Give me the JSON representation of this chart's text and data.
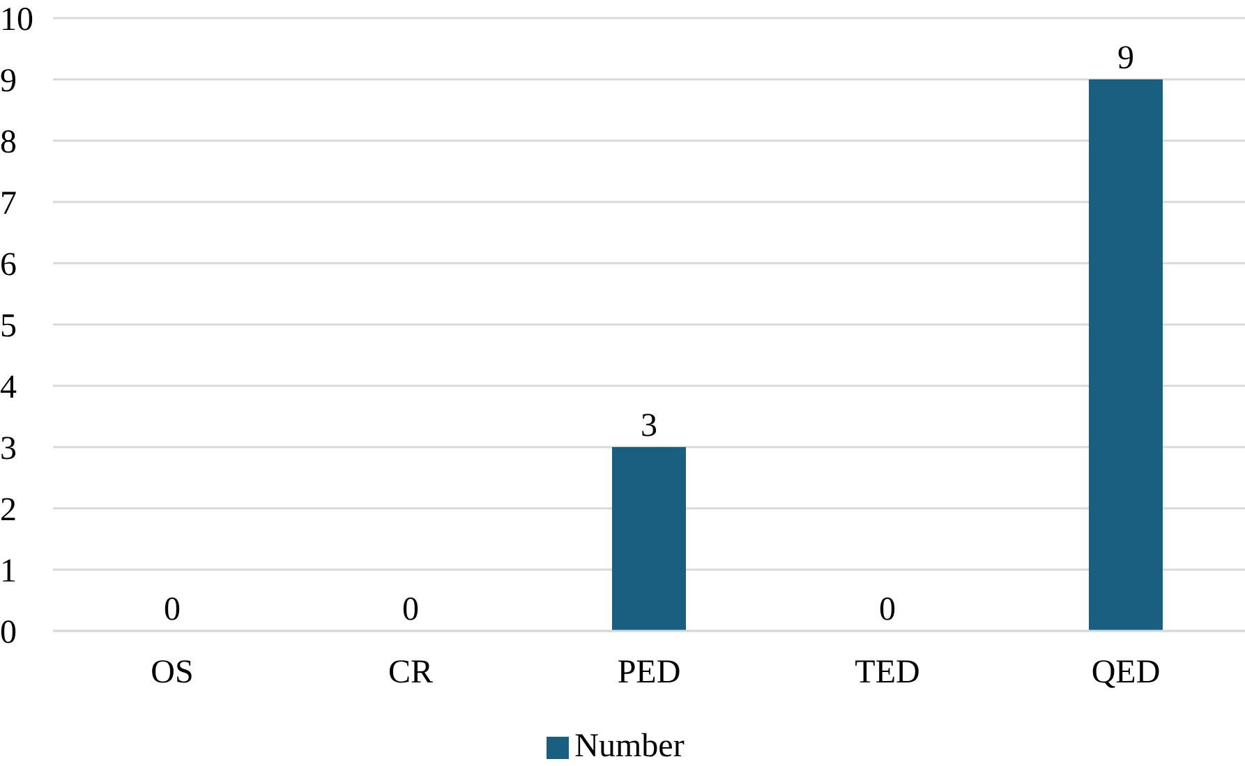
{
  "chart_data": {
    "type": "bar",
    "categories": [
      "OS",
      "CR",
      "PED",
      "TED",
      "QED"
    ],
    "series": [
      {
        "name": "Number",
        "color": "#1a5f80",
        "values": [
          0,
          0,
          3,
          0,
          9
        ]
      }
    ],
    "ylim": [
      0,
      10
    ],
    "yticks": [
      0,
      1,
      2,
      3,
      4,
      5,
      6,
      7,
      8,
      9,
      10
    ],
    "grid": "y",
    "legend": "bottom",
    "data_labels": true
  }
}
